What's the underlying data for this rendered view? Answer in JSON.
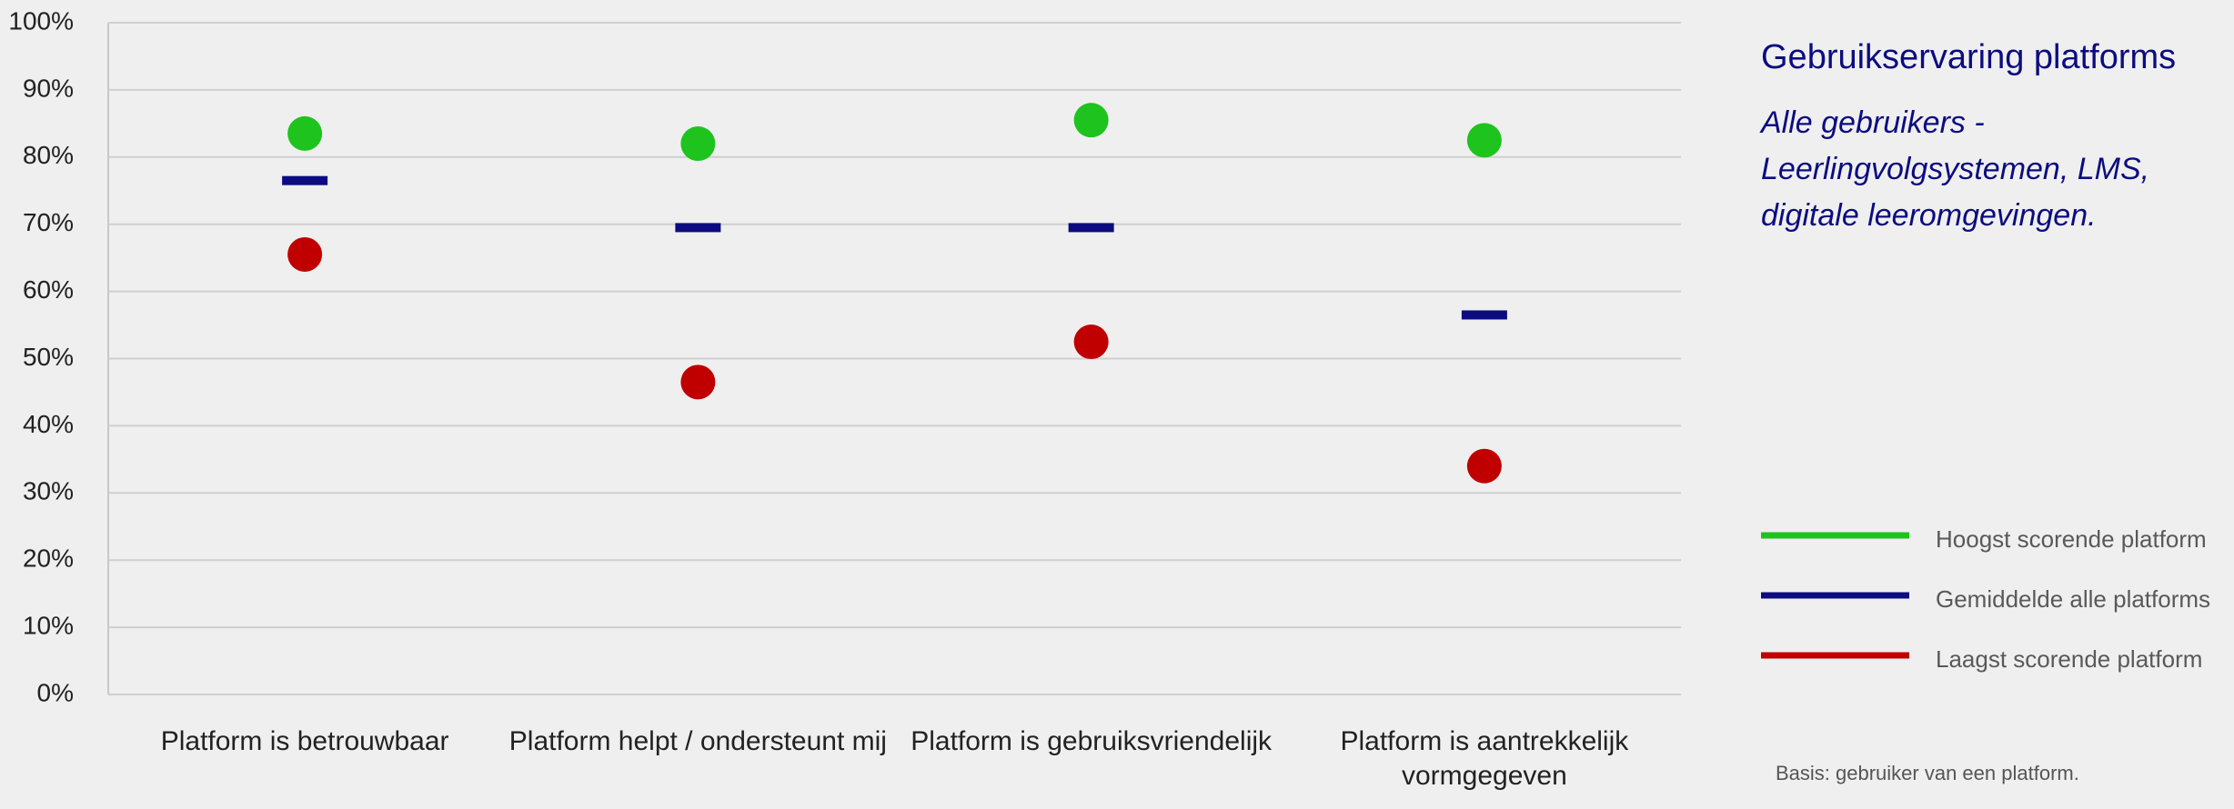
{
  "chart_data": {
    "type": "dot",
    "title": "Gebruikservaring platforms",
    "subtitle": "Alle gebruikers - Leerlingvolgsystemen, LMS, digitale leeromgevingen.",
    "note": "Basis: gebruiker van een platform.",
    "categories": [
      "Platform is betrouwbaar",
      "Platform helpt / ondersteunt mij",
      "Platform is gebruiksvriendelijk",
      "Platform is aantrekkelijk vormgegeven"
    ],
    "series": [
      {
        "name": "Hoogst scorende platform",
        "color": "#1ec31e",
        "marker": "circle",
        "values": [
          83.5,
          82,
          85.5,
          82.5
        ]
      },
      {
        "name": "Gemiddelde alle platforms",
        "color": "#0c0c80",
        "marker": "dash",
        "values": [
          76.5,
          69.5,
          69.5,
          56.5
        ]
      },
      {
        "name": "Laagst scorende platform",
        "color": "#c00000",
        "marker": "circle",
        "values": [
          65.5,
          46.5,
          52.5,
          34
        ]
      }
    ],
    "ylim": [
      0,
      100
    ],
    "yticks": [
      {
        "value": 0,
        "label": "0%"
      },
      {
        "value": 10,
        "label": "10%"
      },
      {
        "value": 20,
        "label": "20%"
      },
      {
        "value": 30,
        "label": "30%"
      },
      {
        "value": 40,
        "label": "40%"
      },
      {
        "value": 50,
        "label": "50%"
      },
      {
        "value": 60,
        "label": "60%"
      },
      {
        "value": 70,
        "label": "70%"
      },
      {
        "value": 80,
        "label": "80%"
      },
      {
        "value": 90,
        "label": "90%"
      },
      {
        "value": 100,
        "label": "100%"
      }
    ],
    "grid": true,
    "legend": "right"
  }
}
